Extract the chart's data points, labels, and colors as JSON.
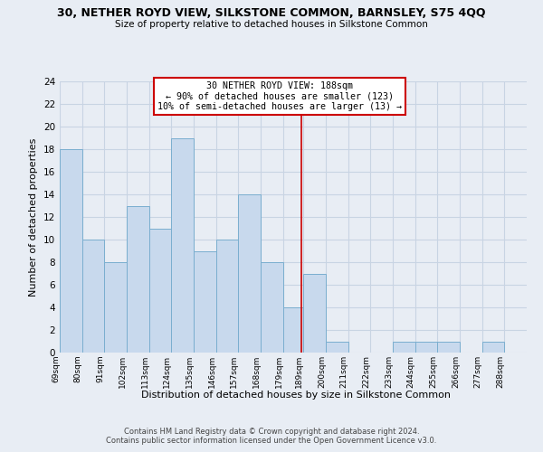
{
  "title": "30, NETHER ROYD VIEW, SILKSTONE COMMON, BARNSLEY, S75 4QQ",
  "subtitle": "Size of property relative to detached houses in Silkstone Common",
  "xlabel": "Distribution of detached houses by size in Silkstone Common",
  "ylabel": "Number of detached properties",
  "footer1": "Contains HM Land Registry data © Crown copyright and database right 2024.",
  "footer2": "Contains public sector information licensed under the Open Government Licence v3.0.",
  "bin_labels": [
    "69sqm",
    "80sqm",
    "91sqm",
    "102sqm",
    "113sqm",
    "124sqm",
    "135sqm",
    "146sqm",
    "157sqm",
    "168sqm",
    "179sqm",
    "189sqm",
    "200sqm",
    "211sqm",
    "222sqm",
    "233sqm",
    "244sqm",
    "255sqm",
    "266sqm",
    "277sqm",
    "288sqm"
  ],
  "bin_edges": [
    69,
    80,
    91,
    102,
    113,
    124,
    135,
    146,
    157,
    168,
    179,
    189,
    200,
    211,
    222,
    233,
    244,
    255,
    266,
    277,
    288
  ],
  "bar_heights": [
    18,
    10,
    8,
    13,
    11,
    19,
    9,
    10,
    14,
    8,
    4,
    7,
    1,
    0,
    0,
    1,
    1,
    1,
    0,
    1
  ],
  "bar_color": "#c8d9ed",
  "bar_edgecolor": "#7aaecf",
  "grid_color": "#c8d4e3",
  "background_color": "#e8edf4",
  "annotation_title": "30 NETHER ROYD VIEW: 188sqm",
  "annotation_line1": "← 90% of detached houses are smaller (123)",
  "annotation_line2": "10% of semi-detached houses are larger (13) →",
  "property_line_x": 188,
  "annotation_box_facecolor": "#ffffff",
  "annotation_border_color": "#cc0000",
  "vline_color": "#cc0000",
  "ylim": [
    0,
    24
  ],
  "yticks": [
    0,
    2,
    4,
    6,
    8,
    10,
    12,
    14,
    16,
    18,
    20,
    22,
    24
  ]
}
